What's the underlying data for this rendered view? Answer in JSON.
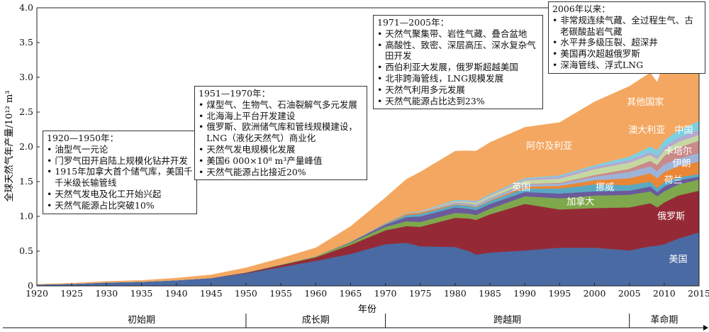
{
  "chart_data": {
    "type": "area",
    "stacked": true,
    "xlabel": "年份",
    "ylabel": "全球天然气年产量/10¹² m³",
    "xlim": [
      1920,
      2015
    ],
    "ylim": [
      0,
      4.0
    ],
    "x_ticks": [
      "1920",
      "1925",
      "1930",
      "1935",
      "1940",
      "1945",
      "1950",
      "1955",
      "1960",
      "1965",
      "1970",
      "1975",
      "1980",
      "1985",
      "1990",
      "1995",
      "2000",
      "2005",
      "2010",
      "2015"
    ],
    "y_ticks": [
      "0",
      "0.5",
      "1.0",
      "1.5",
      "2.0",
      "2.5",
      "3.0",
      "3.5",
      "4.0"
    ],
    "x": [
      1920,
      1925,
      1930,
      1935,
      1940,
      1945,
      1950,
      1955,
      1960,
      1965,
      1970,
      1973,
      1975,
      1980,
      1982,
      1983,
      1985,
      1990,
      1995,
      2000,
      2005,
      2008,
      2009,
      2010,
      2012,
      2015
    ],
    "series": [
      {
        "name": "美国",
        "color": "#4a6aa3",
        "values": [
          0.02,
          0.03,
          0.05,
          0.06,
          0.08,
          0.11,
          0.18,
          0.27,
          0.36,
          0.46,
          0.6,
          0.62,
          0.57,
          0.56,
          0.5,
          0.45,
          0.48,
          0.51,
          0.55,
          0.55,
          0.51,
          0.57,
          0.58,
          0.6,
          0.68,
          0.77
        ]
      },
      {
        "name": "俄罗斯",
        "color": "#952a36",
        "values": [
          0,
          0,
          0,
          0,
          0.002,
          0.004,
          0.01,
          0.03,
          0.05,
          0.13,
          0.2,
          0.24,
          0.28,
          0.42,
          0.47,
          0.5,
          0.55,
          0.67,
          0.55,
          0.57,
          0.62,
          0.62,
          0.55,
          0.6,
          0.62,
          0.6
        ]
      },
      {
        "name": "加拿大",
        "color": "#7ea84b",
        "values": [
          0,
          0,
          0,
          0,
          0,
          0,
          0.005,
          0.008,
          0.015,
          0.03,
          0.05,
          0.07,
          0.07,
          0.07,
          0.07,
          0.07,
          0.08,
          0.11,
          0.16,
          0.18,
          0.18,
          0.17,
          0.16,
          0.16,
          0.16,
          0.16
        ]
      },
      {
        "name": "荷兰",
        "color": "#6b5a9c",
        "values": [
          0,
          0,
          0,
          0,
          0,
          0,
          0,
          0,
          0.002,
          0.01,
          0.03,
          0.06,
          0.08,
          0.08,
          0.07,
          0.07,
          0.07,
          0.06,
          0.07,
          0.06,
          0.06,
          0.07,
          0.06,
          0.07,
          0.06,
          0.04
        ]
      },
      {
        "name": "英国",
        "color": "#5aa9c2",
        "values": [
          0,
          0,
          0,
          0,
          0,
          0,
          0,
          0,
          0,
          0.002,
          0.011,
          0.028,
          0.035,
          0.035,
          0.04,
          0.04,
          0.04,
          0.05,
          0.07,
          0.1,
          0.08,
          0.07,
          0.06,
          0.06,
          0.04,
          0.04
        ]
      },
      {
        "name": "伊朗",
        "color": "#e98737",
        "values": [
          0,
          0,
          0,
          0,
          0,
          0,
          0,
          0,
          0,
          0.002,
          0.01,
          0.02,
          0.02,
          0.01,
          0.01,
          0.01,
          0.01,
          0.03,
          0.04,
          0.06,
          0.1,
          0.12,
          0.14,
          0.15,
          0.16,
          0.18
        ]
      },
      {
        "name": "挪威",
        "color": "#9db4d9",
        "values": [
          0,
          0,
          0,
          0,
          0,
          0,
          0,
          0,
          0,
          0,
          0,
          0.002,
          0.005,
          0.02,
          0.025,
          0.025,
          0.03,
          0.03,
          0.03,
          0.05,
          0.09,
          0.1,
          0.1,
          0.11,
          0.11,
          0.12
        ]
      },
      {
        "name": "卡塔尔",
        "color": "#c98a89",
        "values": [
          0,
          0,
          0,
          0,
          0,
          0,
          0,
          0,
          0,
          0,
          0.001,
          0.002,
          0.002,
          0.005,
          0.005,
          0.005,
          0.006,
          0.007,
          0.013,
          0.024,
          0.045,
          0.08,
          0.09,
          0.12,
          0.16,
          0.18
        ]
      },
      {
        "name": "阿尔及利亚",
        "color": "#c6d8a2",
        "values": [
          0,
          0,
          0,
          0,
          0,
          0,
          0,
          0,
          0,
          0,
          0.002,
          0.004,
          0.006,
          0.015,
          0.02,
          0.025,
          0.03,
          0.05,
          0.06,
          0.085,
          0.088,
          0.086,
          0.08,
          0.08,
          0.082,
          0.083
        ]
      },
      {
        "name": "澳大利亚",
        "color": "#b6a7d1",
        "values": [
          0,
          0,
          0,
          0,
          0,
          0,
          0,
          0,
          0,
          0,
          0.002,
          0.004,
          0.005,
          0.01,
          0.012,
          0.013,
          0.015,
          0.02,
          0.03,
          0.032,
          0.038,
          0.04,
          0.045,
          0.05,
          0.055,
          0.07
        ]
      },
      {
        "name": "中国",
        "color": "#7ecfe0",
        "values": [
          0,
          0,
          0,
          0,
          0,
          0,
          0,
          0,
          0,
          0.001,
          0.003,
          0.004,
          0.005,
          0.014,
          0.012,
          0.012,
          0.012,
          0.015,
          0.018,
          0.027,
          0.05,
          0.08,
          0.085,
          0.095,
          0.11,
          0.13
        ]
      },
      {
        "name": "其他国家",
        "color": "#f4a760",
        "values": [
          0.005,
          0.01,
          0.015,
          0.02,
          0.03,
          0.045,
          0.065,
          0.09,
          0.12,
          0.22,
          0.36,
          0.48,
          0.56,
          0.7,
          0.71,
          0.72,
          0.74,
          0.73,
          0.76,
          0.91,
          1.01,
          1.06,
          0.98,
          1.13,
          1.16,
          1.2
        ]
      }
    ],
    "series_label_positions": "inline",
    "periods": [
      {
        "label": "初始期",
        "range": [
          1920,
          1950
        ]
      },
      {
        "label": "成长期",
        "range": [
          1950,
          1970
        ]
      },
      {
        "label": "跨越期",
        "range": [
          1970,
          2005
        ]
      },
      {
        "label": "革命期",
        "range": [
          2005,
          2015
        ]
      }
    ]
  },
  "notes": [
    {
      "id": "n1",
      "title": "1920—1950年：",
      "items": [
        "油型气一元论",
        "门罗气田开启陆上规模化钻井开发",
        "1915年加拿大首个储气库，美国千千米级长输管线",
        "天然气发电及化工开始兴起",
        "天然气能源占比突破10%"
      ]
    },
    {
      "id": "n2",
      "title": "1951—1970年：",
      "items": [
        "煤型气、生物气、石油裂解气多元发展",
        "北海海上平台开发建设",
        "俄罗斯、欧洲储气库和管线规模建设，LNG（液化天然气）商业化",
        "天然气发电规模化发展",
        "美国6 000×10⁸ m³产量峰值",
        "天然气能源占比接近20%"
      ]
    },
    {
      "id": "n3",
      "title": "1971—2005年：",
      "items": [
        "天然气聚集带、岩性气藏、叠合盆地",
        "高酸性、致密、深层高压、深水复杂气田开发",
        "西伯利亚大发展，俄罗斯超越美国",
        "北非跨海管线，LNG规模发展",
        "天然气利用多元发展",
        "天然气能源占比达到23%"
      ]
    },
    {
      "id": "n4",
      "title": "2006年以来：",
      "items": [
        "非常规连续气藏、全过程生气、古老碳酸盐岩气藏",
        "水平井多级压裂、超深井",
        "美国再次超越俄罗斯",
        "深海管线、浮式LNG"
      ]
    }
  ]
}
